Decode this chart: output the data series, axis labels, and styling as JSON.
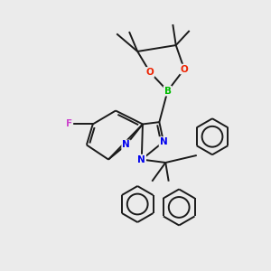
{
  "background_color": "#ebebeb",
  "bond_color": "#1a1a1a",
  "atom_colors": {
    "B": "#00bb00",
    "O": "#ee2200",
    "N": "#0000ee",
    "F": "#cc44cc",
    "C": "#1a1a1a"
  },
  "figsize": [
    3.0,
    3.0
  ],
  "dpi": 100,
  "lw": 1.4
}
